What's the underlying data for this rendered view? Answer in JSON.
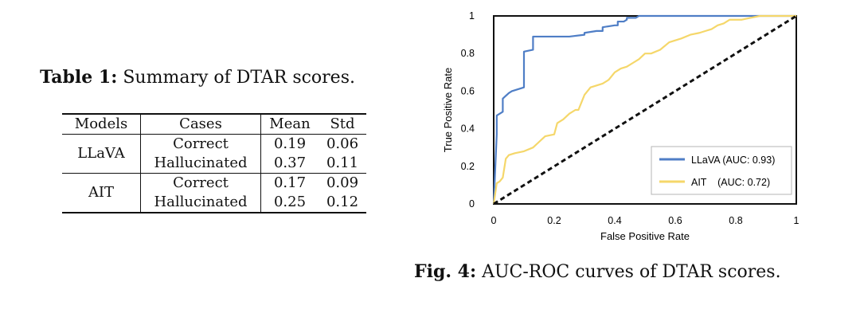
{
  "table": {
    "caption_label": "Table 1:",
    "caption_text": "Summary of DTAR scores.",
    "headers": [
      "Models",
      "Cases",
      "Mean",
      "Std"
    ],
    "groups": [
      {
        "model": "LLaVA",
        "rows": [
          {
            "case": "Correct",
            "mean": "0.19",
            "std": "0.06"
          },
          {
            "case": "Hallucinated",
            "mean": "0.37",
            "std": "0.11"
          }
        ]
      },
      {
        "model": "AIT",
        "rows": [
          {
            "case": "Correct",
            "mean": "0.17",
            "std": "0.09"
          },
          {
            "case": "Hallucinated",
            "mean": "0.25",
            "std": "0.12"
          }
        ]
      }
    ]
  },
  "figure": {
    "caption_label": "Fig. 4:",
    "caption_text": "AUC-ROC curves of DTAR scores."
  },
  "chart_data": {
    "type": "line",
    "title": "",
    "xlabel": "False Positive Rate",
    "ylabel": "True Positive Rate",
    "xlim": [
      0,
      1
    ],
    "ylim": [
      0,
      1
    ],
    "x_ticks": [
      "0",
      "0.2",
      "0.4",
      "0.6",
      "0.8",
      "1"
    ],
    "y_ticks": [
      "0",
      "0.2",
      "0.4",
      "0.6",
      "0.8",
      "1"
    ],
    "grid": false,
    "legend_position": "bottom-right",
    "series": [
      {
        "name": "LLaVA",
        "legend_label": "LLaVA (AUC: 0.93)",
        "color": "#4f7ec6",
        "x": [
          0,
          0.01,
          0.01,
          0.03,
          0.03,
          0.05,
          0.06,
          0.08,
          0.1,
          0.1,
          0.13,
          0.13,
          0.25,
          0.3,
          0.3,
          0.34,
          0.36,
          0.36,
          0.4,
          0.41,
          0.41,
          0.43,
          0.44,
          0.44,
          0.47,
          0.48,
          0.48,
          0.52,
          1
        ],
        "y": [
          0,
          0.37,
          0.47,
          0.49,
          0.56,
          0.59,
          0.6,
          0.61,
          0.62,
          0.81,
          0.82,
          0.89,
          0.89,
          0.9,
          0.91,
          0.92,
          0.92,
          0.94,
          0.95,
          0.95,
          0.97,
          0.97,
          0.98,
          0.99,
          0.99,
          1.0,
          1.0,
          1.0,
          1.0
        ]
      },
      {
        "name": "AIT",
        "legend_label": "AIT    (AUC: 0.72)",
        "color": "#f5d76a",
        "x": [
          0,
          0.01,
          0.02,
          0.03,
          0.04,
          0.05,
          0.07,
          0.1,
          0.13,
          0.15,
          0.17,
          0.2,
          0.21,
          0.23,
          0.25,
          0.27,
          0.28,
          0.3,
          0.32,
          0.34,
          0.36,
          0.38,
          0.4,
          0.42,
          0.44,
          0.46,
          0.48,
          0.5,
          0.52,
          0.55,
          0.58,
          0.6,
          0.62,
          0.65,
          0.68,
          0.7,
          0.72,
          0.74,
          0.76,
          0.78,
          0.82,
          0.85,
          0.88,
          0.92,
          1
        ],
        "y": [
          0,
          0.11,
          0.12,
          0.14,
          0.24,
          0.26,
          0.27,
          0.28,
          0.3,
          0.33,
          0.36,
          0.37,
          0.43,
          0.45,
          0.48,
          0.5,
          0.5,
          0.58,
          0.62,
          0.63,
          0.64,
          0.66,
          0.7,
          0.72,
          0.73,
          0.75,
          0.77,
          0.8,
          0.8,
          0.82,
          0.86,
          0.87,
          0.88,
          0.9,
          0.91,
          0.92,
          0.93,
          0.95,
          0.96,
          0.98,
          0.98,
          0.99,
          1.0,
          1.0,
          1.0
        ]
      },
      {
        "name": "Chance",
        "color": "#111111",
        "dashed": true,
        "x": [
          0,
          1
        ],
        "y": [
          0,
          1
        ]
      }
    ]
  }
}
